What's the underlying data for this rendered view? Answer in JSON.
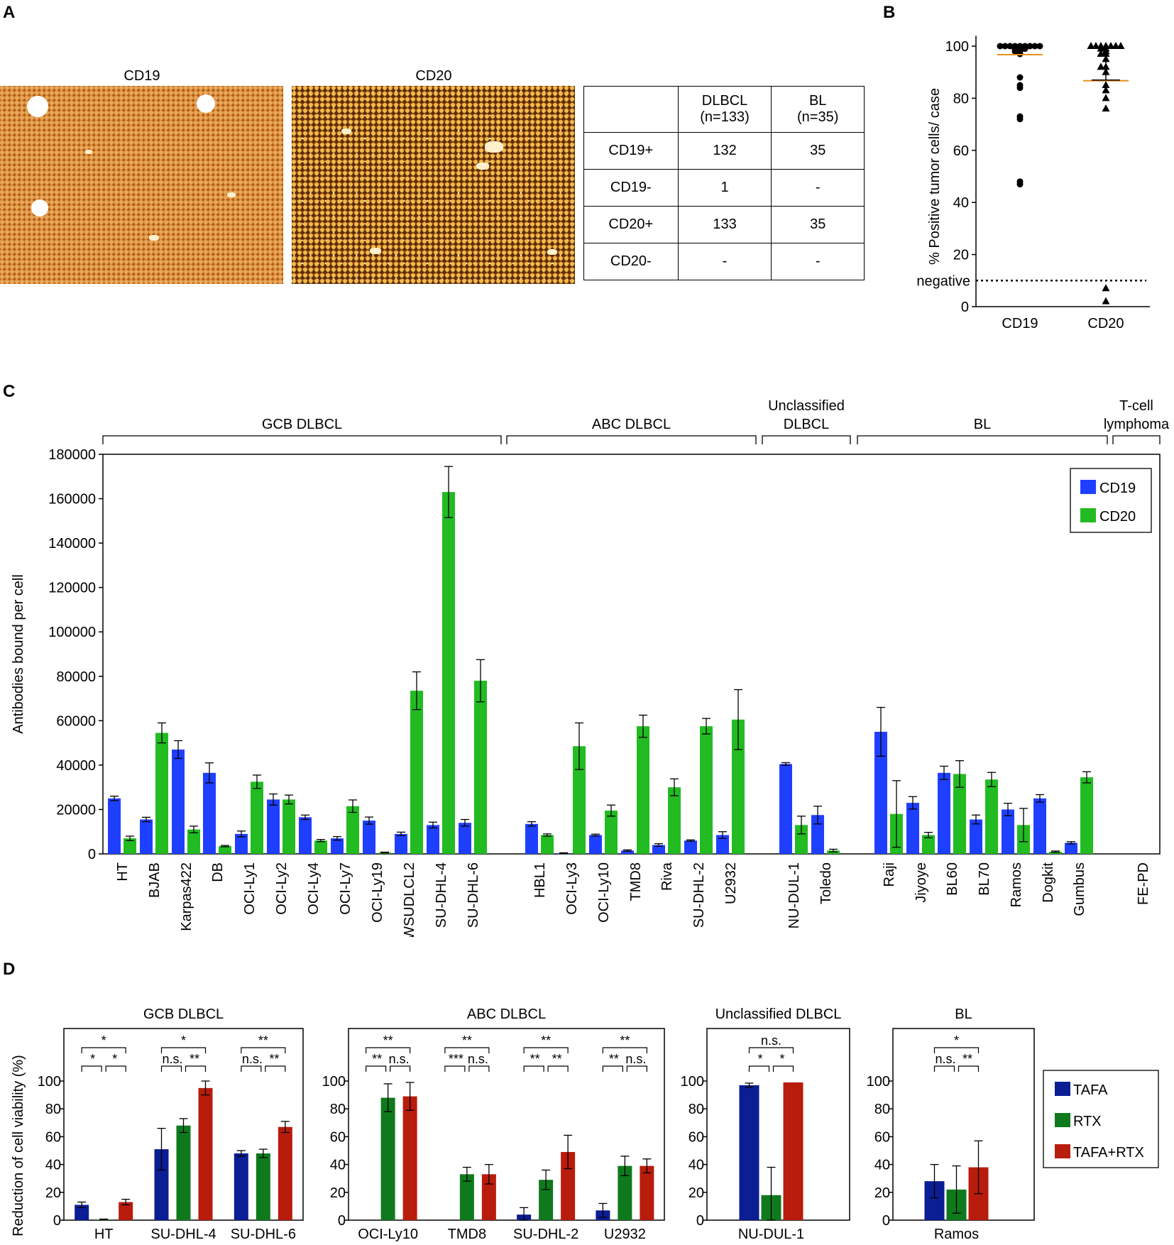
{
  "panels": {
    "a": "A",
    "b": "B",
    "c": "C",
    "d": "D"
  },
  "panel_a": {
    "image_titles": [
      "CD19",
      "CD20"
    ],
    "table": {
      "columns": [
        "",
        "DLBCL\n(n=133)",
        "BL\n(n=35)"
      ],
      "col1_line1": "DLBCL",
      "col1_line2": "(n=133)",
      "col2_line1": "BL",
      "col2_line2": "(n=35)",
      "rows": [
        [
          "CD19+",
          "132",
          "35"
        ],
        [
          "CD19-",
          "1",
          "-"
        ],
        [
          "CD20+",
          "133",
          "35"
        ],
        [
          "CD20-",
          "-",
          "-"
        ]
      ]
    }
  },
  "chart_data": [
    {
      "panel": "B",
      "type": "scatter",
      "ylabel": "% Positive tumor cells/ case",
      "categories": [
        "CD19",
        "CD20"
      ],
      "ylim": [
        0,
        100
      ],
      "yticks": [
        0,
        20,
        40,
        60,
        80,
        100
      ],
      "threshold": {
        "label": "negative",
        "value": 10
      },
      "series": [
        {
          "name": "CD19",
          "marker": "circle",
          "mean": 97,
          "values": [
            100,
            100,
            100,
            100,
            100,
            100,
            100,
            100,
            100,
            99,
            99,
            99,
            98,
            98,
            97,
            88,
            85,
            84,
            73,
            72,
            48,
            47
          ]
        },
        {
          "name": "CD20",
          "marker": "triangle",
          "mean": 87,
          "sd_low": 87,
          "values": [
            100,
            100,
            100,
            100,
            100,
            100,
            100,
            99,
            99,
            98,
            97,
            97,
            95,
            92,
            92,
            90,
            85,
            83,
            80,
            76,
            7,
            2
          ]
        }
      ]
    },
    {
      "panel": "C",
      "type": "bar",
      "ylabel": "Antibodies bound per cell",
      "ylim": [
        0,
        180000
      ],
      "yticks": [
        0,
        20000,
        40000,
        60000,
        80000,
        100000,
        120000,
        140000,
        160000,
        180000
      ],
      "legend": [
        "CD19",
        "CD20"
      ],
      "groups": [
        {
          "label": "GCB DLBCL",
          "lines": [
            "GCB DLBCL"
          ]
        },
        {
          "label": "ABC DLBCL",
          "lines": [
            "ABC DLBCL"
          ]
        },
        {
          "label": "Unclassified DLBCL",
          "lines": [
            "Unclassified",
            "DLBCL"
          ]
        },
        {
          "label": "BL",
          "lines": [
            "BL"
          ]
        },
        {
          "label": "T-cell lymphoma",
          "lines": [
            "T-cell",
            "lymphoma"
          ]
        }
      ],
      "categories": [
        "HT",
        "BJAB",
        "Karpas422",
        "DB",
        "OCI-Ly1",
        "OCI-Ly2",
        "OCI-Ly4",
        "OCI-Ly7",
        "OCI-Ly19",
        "WSUDLCL2",
        "SU-DHL-4",
        "SU-DHL-6",
        "HBL1",
        "OCI-Ly3",
        "OCI-Ly10",
        "TMD8",
        "Riva",
        "SU-DHL-2",
        "U2932",
        "NU-DUL-1",
        "Toledo",
        "Raji",
        "Jiyoye",
        "BL60",
        "BL70",
        "Ramos",
        "Dogkit",
        "Gumbus",
        "FE-PD"
      ],
      "series": [
        {
          "name": "CD19",
          "color": "#1f3fff",
          "values": [
            25000,
            15500,
            47000,
            36500,
            9000,
            24500,
            16500,
            7000,
            15000,
            9000,
            13000,
            14000,
            13500,
            300,
            8500,
            1500,
            4000,
            6000,
            8500,
            40500,
            17500,
            55000,
            23000,
            36500,
            15500,
            20000,
            25000,
            5000,
            0
          ],
          "errors": [
            1000,
            1000,
            4000,
            4500,
            1300,
            2500,
            1000,
            800,
            1600,
            800,
            1300,
            1500,
            1000,
            200,
            400,
            300,
            600,
            300,
            1500,
            600,
            4000,
            11000,
            2800,
            3000,
            2000,
            2800,
            1700,
            500,
            0
          ]
        },
        {
          "name": "CD20",
          "color": "#22bb22",
          "values": [
            7000,
            54500,
            11000,
            3500,
            32500,
            24500,
            6000,
            21500,
            600,
            73500,
            163000,
            78000,
            8500,
            48500,
            19500,
            57500,
            30000,
            57500,
            60500,
            13000,
            1500,
            18000,
            8500,
            36000,
            33500,
            13000,
            1000,
            34500,
            0
          ],
          "errors": [
            1000,
            4500,
            1500,
            300,
            3000,
            2000,
            500,
            2800,
            200,
            8500,
            11500,
            9500,
            500,
            10500,
            2500,
            5000,
            3800,
            3500,
            13500,
            4000,
            600,
            15000,
            1200,
            6000,
            3200,
            7500,
            300,
            2500,
            0
          ]
        }
      ]
    },
    {
      "panel": "D",
      "type": "bar",
      "ylabel": "Reduction of cell viability (%)",
      "ylim": [
        0,
        100
      ],
      "yticks": [
        0,
        20,
        40,
        60,
        80,
        100
      ],
      "legend": [
        "TAFA",
        "RTX",
        "TAFA+RTX"
      ],
      "colors": {
        "TAFA": "#0b1e93",
        "RTX": "#0f7a1d",
        "TAFA+RTX": "#b81c0c"
      },
      "subplots": [
        {
          "title": "GCB DLBCL",
          "categories": [
            "HT",
            "SU-DHL-4",
            "SU-DHL-6"
          ],
          "TAFA": [
            11,
            51,
            48
          ],
          "TAFA_err": [
            2,
            15,
            2
          ],
          "RTX": [
            0.5,
            68,
            48
          ],
          "RTX_err": [
            0.3,
            5,
            3
          ],
          "TAFA+RTX": [
            13,
            95,
            67
          ],
          "TAFA+RTX_err": [
            2,
            5,
            4
          ],
          "sig": [
            [
              "*",
              "*",
              "*"
            ],
            [
              "n.s.",
              "**",
              "*"
            ],
            [
              "n.s.",
              "**",
              "**"
            ]
          ]
        },
        {
          "title": "ABC DLBCL",
          "categories": [
            "OCI-Ly10",
            "TMD8",
            "SU-DHL-2",
            "U2932"
          ],
          "TAFA": [
            0,
            0,
            4,
            7
          ],
          "TAFA_err": [
            0,
            0,
            5,
            5
          ],
          "RTX": [
            88,
            33,
            29,
            39
          ],
          "RTX_err": [
            10,
            5,
            7,
            7
          ],
          "TAFA+RTX": [
            89,
            33,
            49,
            39
          ],
          "TAFA+RTX_err": [
            10,
            7,
            12,
            5
          ],
          "sig": [
            [
              "**",
              "n.s.",
              "**"
            ],
            [
              "***",
              "n.s.",
              "**"
            ],
            [
              "**",
              "**",
              "**"
            ],
            [
              "**",
              "n.s.",
              "**"
            ]
          ]
        },
        {
          "title": "Unclassified DLBCL",
          "categories": [
            "NU-DUL-1"
          ],
          "TAFA": [
            97
          ],
          "TAFA_err": [
            1.5
          ],
          "RTX": [
            18
          ],
          "RTX_err": [
            20
          ],
          "TAFA+RTX": [
            99
          ],
          "TAFA+RTX_err": [
            0
          ],
          "sig": [
            [
              "*",
              "*",
              "n.s."
            ]
          ]
        },
        {
          "title": "BL",
          "categories": [
            "Ramos"
          ],
          "TAFA": [
            28
          ],
          "TAFA_err": [
            12
          ],
          "RTX": [
            22
          ],
          "RTX_err": [
            17
          ],
          "TAFA+RTX": [
            38
          ],
          "TAFA+RTX_err": [
            19
          ],
          "sig": [
            [
              "n.s.",
              "**",
              "*"
            ]
          ]
        }
      ]
    }
  ]
}
